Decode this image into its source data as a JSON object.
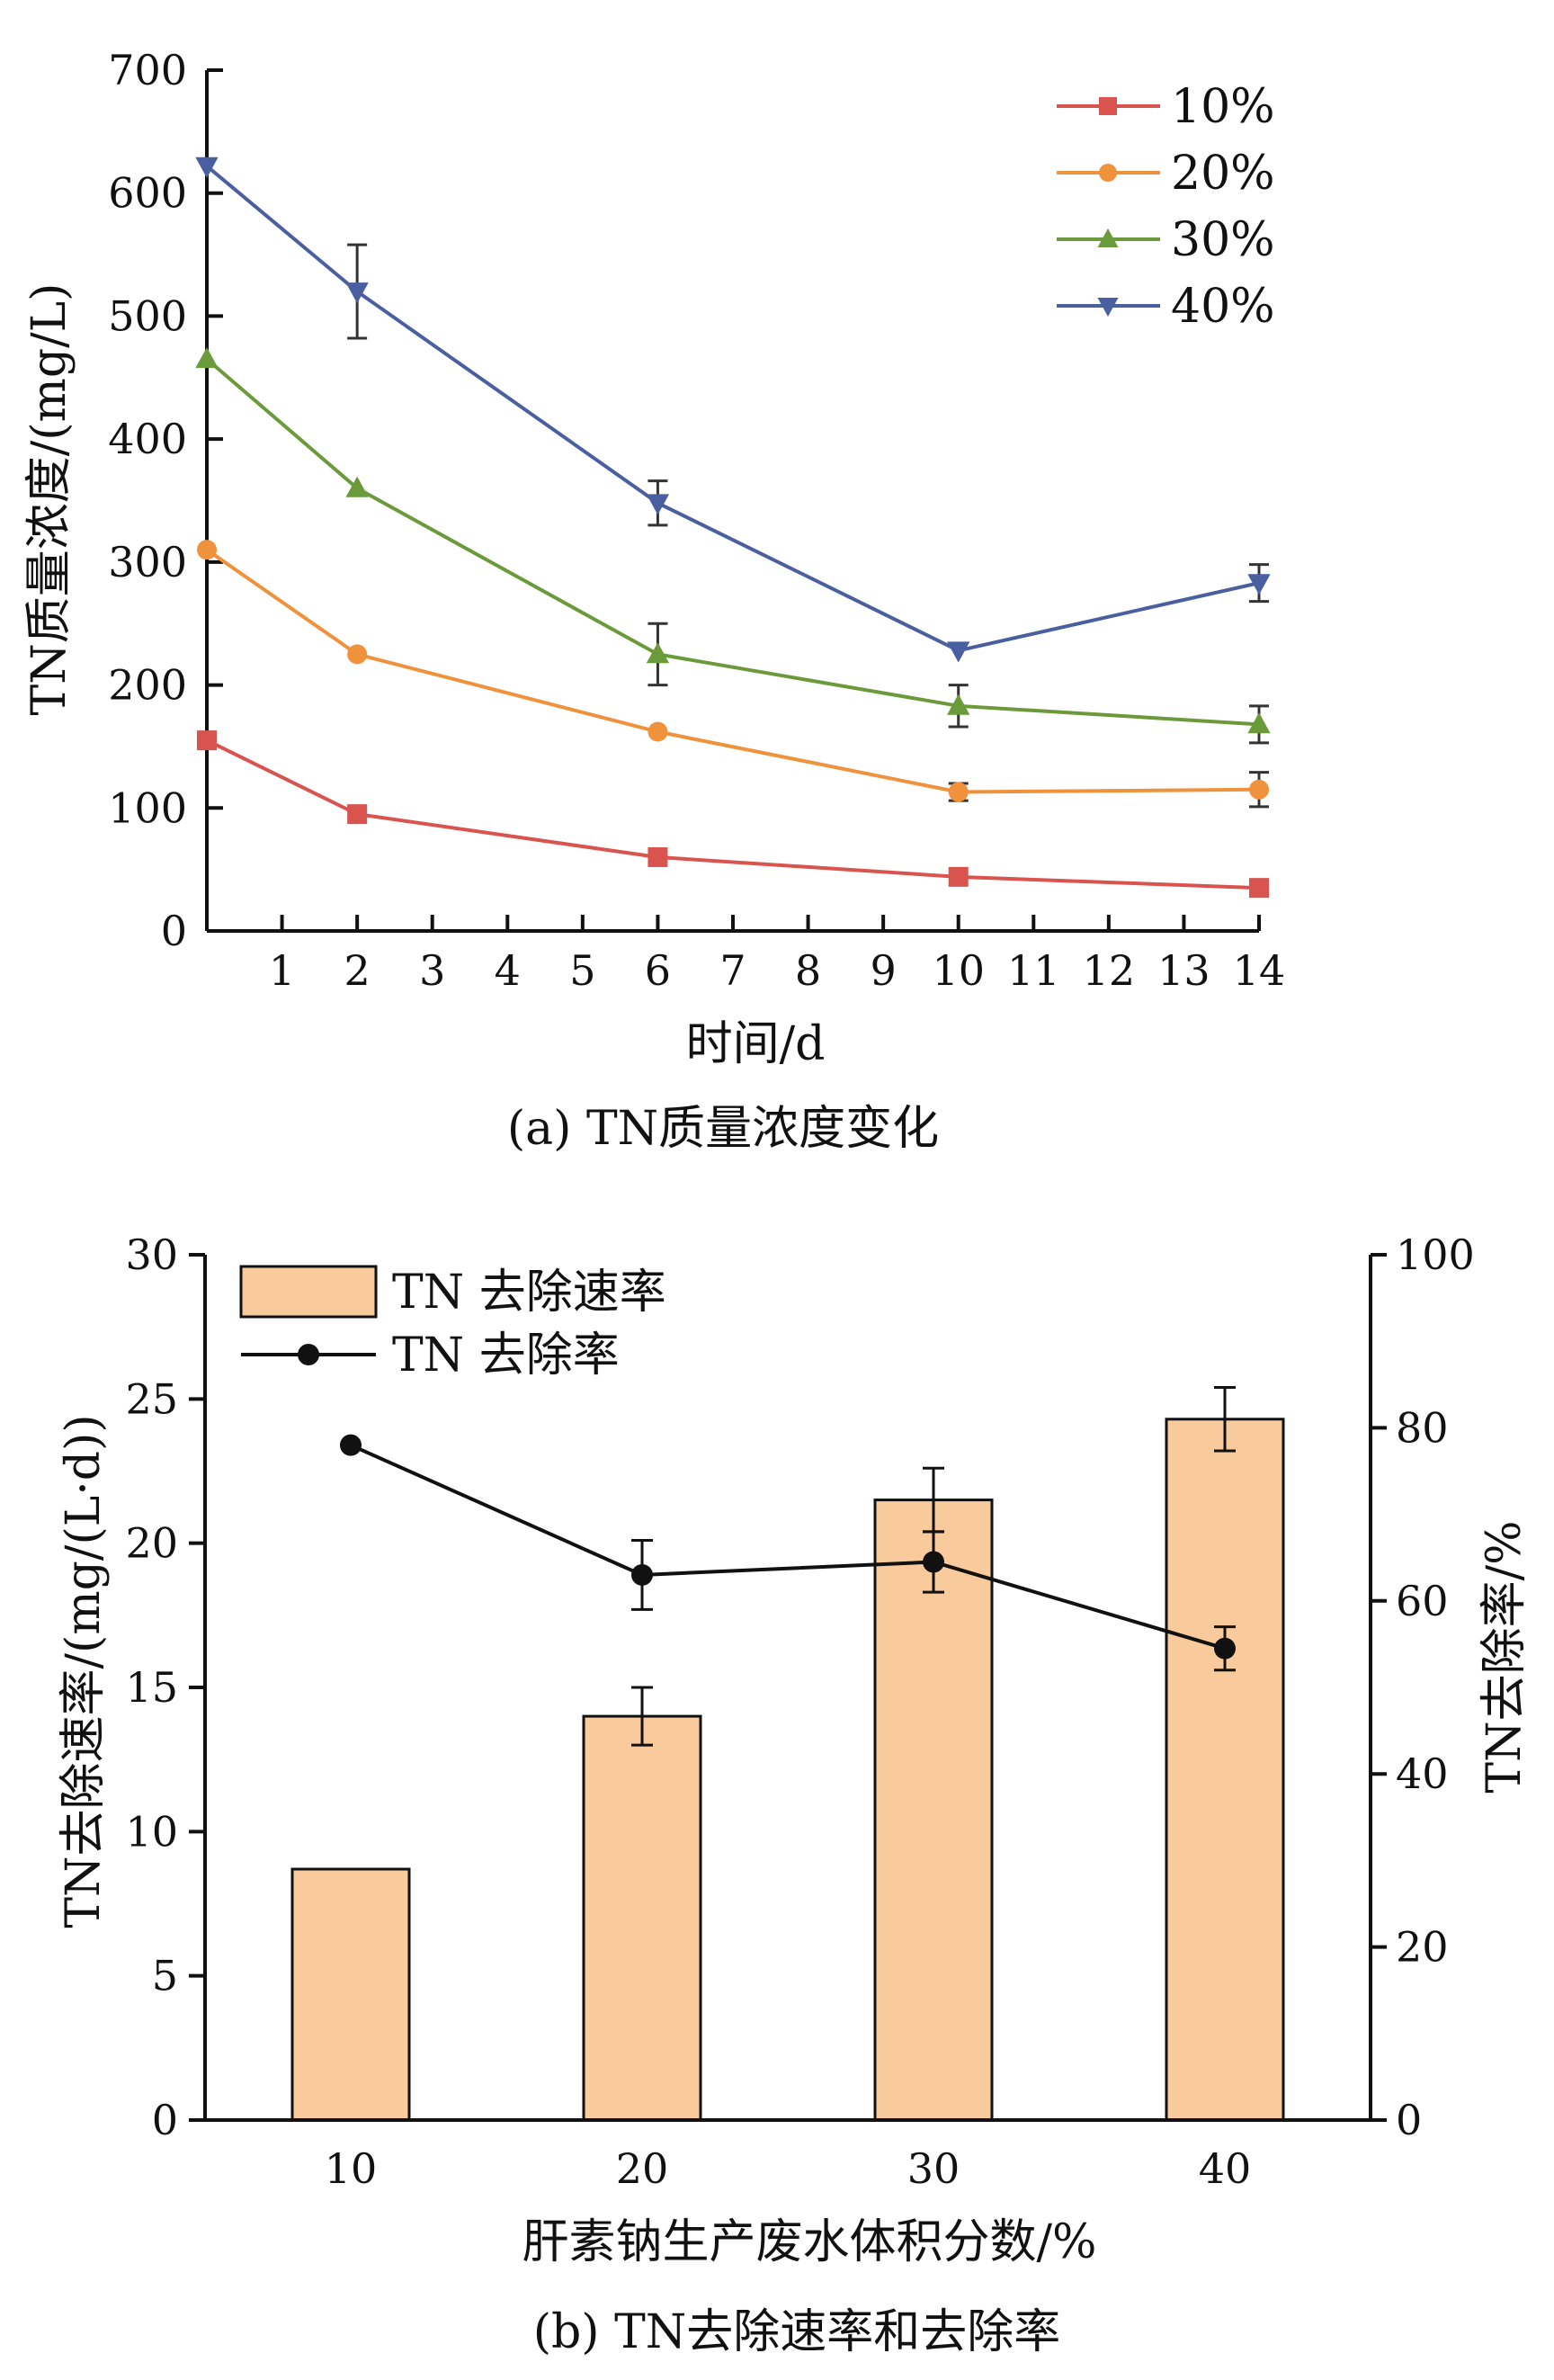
{
  "chart_data": [
    {
      "type": "line",
      "caption": "(a) TN质量浓度变化",
      "xlabel": "时间/d",
      "ylabel": "TN质量浓度/(mg/L)",
      "xlim": [
        0,
        14
      ],
      "ylim": [
        0,
        700
      ],
      "xticks": [
        1,
        2,
        3,
        4,
        5,
        6,
        7,
        8,
        9,
        10,
        11,
        12,
        13,
        14
      ],
      "yticks": [
        0,
        100,
        200,
        300,
        400,
        500,
        600,
        700
      ],
      "legend_position": "top-right",
      "x": [
        0,
        2,
        6,
        10,
        14
      ],
      "series": [
        {
          "name": "10%",
          "color": "#d9534f",
          "marker": "square",
          "values": [
            155,
            95,
            60,
            44,
            35
          ],
          "errors": [
            3,
            4,
            3,
            3,
            3
          ]
        },
        {
          "name": "20%",
          "color": "#f0923b",
          "marker": "circle",
          "values": [
            310,
            225,
            162,
            113,
            115
          ],
          "errors": [
            4,
            4,
            4,
            7,
            14
          ]
        },
        {
          "name": "30%",
          "color": "#6a9a3a",
          "marker": "triangle-up",
          "values": [
            465,
            360,
            225,
            183,
            168
          ],
          "errors": [
            3,
            4,
            25,
            17,
            15
          ]
        },
        {
          "name": "40%",
          "color": "#4a5fa0",
          "marker": "triangle-down",
          "values": [
            622,
            520,
            348,
            228,
            283
          ],
          "errors": [
            3,
            38,
            18,
            4,
            15
          ]
        }
      ]
    },
    {
      "type": "bar",
      "caption": "(b) TN去除速率和去除率",
      "xlabel": "肝素钠生产废水体积分数/%",
      "ylabel": "TN去除速率/(mg/(L·d))",
      "y2label": "TN去除率/%",
      "categories": [
        "10",
        "20",
        "30",
        "40"
      ],
      "ylim": [
        0,
        30
      ],
      "y2lim": [
        0,
        100
      ],
      "yticks": [
        0,
        5,
        10,
        15,
        20,
        25,
        30
      ],
      "y2ticks": [
        0,
        20,
        40,
        60,
        80,
        100
      ],
      "legend_position": "top-left",
      "series": [
        {
          "name": "TN 去除速率",
          "kind": "bar",
          "axis": "left",
          "color": "#f9cb9c",
          "values": [
            8.7,
            14.0,
            21.5,
            24.3
          ],
          "errors": [
            0.05,
            1.0,
            1.1,
            1.1
          ]
        },
        {
          "name": "TN 去除率",
          "kind": "line",
          "axis": "right",
          "color": "#111111",
          "values": [
            78,
            63,
            64.5,
            54.5
          ],
          "errors": [
            0.5,
            4,
            3.5,
            2.5
          ]
        }
      ]
    }
  ]
}
